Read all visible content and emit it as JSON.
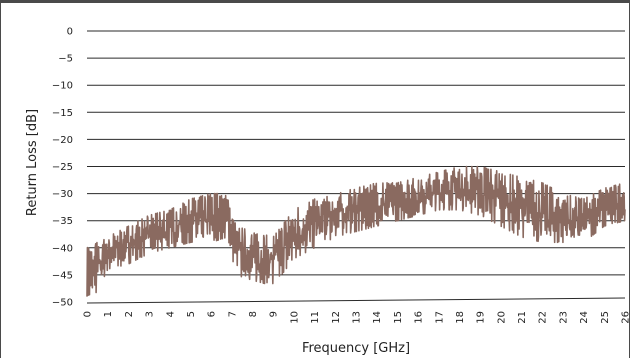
{
  "chart_data": {
    "type": "line",
    "title": "",
    "xlabel": "Frequency [GHz]",
    "ylabel": "Return Loss [dB]",
    "xlim": [
      0,
      26
    ],
    "ylim": [
      -50,
      0
    ],
    "x_ticks": [
      "0",
      "1",
      "2",
      "3",
      "4",
      "5",
      "6",
      "7",
      "8",
      "9",
      "10",
      "11",
      "12",
      "13",
      "14",
      "15",
      "16",
      "17",
      "18",
      "19",
      "20",
      "21",
      "22",
      "23",
      "24",
      "25",
      "26"
    ],
    "y_ticks": [
      "0",
      "−5",
      "−10",
      "−15",
      "−20",
      "−25",
      "−30",
      "−35",
      "−40",
      "−45",
      "−50"
    ],
    "grid": "horizontal",
    "series": [
      {
        "color": "#8a6a60",
        "envelope_x": [
          0,
          0.5,
          1,
          2,
          3,
          4,
          5,
          6,
          6.8,
          7.2,
          8,
          9,
          10,
          11,
          12,
          13,
          14,
          15,
          16,
          17,
          18,
          19,
          20,
          21,
          22,
          23,
          24,
          25,
          26
        ],
        "upper": [
          -40,
          -39,
          -38,
          -36,
          -34,
          -33,
          -31,
          -30,
          -30,
          -36,
          -37,
          -38,
          -33,
          -31,
          -30,
          -29,
          -28,
          -28,
          -27,
          -26,
          -25,
          -25,
          -26,
          -27,
          -28,
          -30,
          -31,
          -29,
          -28
        ],
        "lower": [
          -50,
          -48,
          -44,
          -43,
          -41,
          -40,
          -39,
          -39,
          -38,
          -45,
          -46,
          -47,
          -42,
          -40,
          -38,
          -37,
          -36,
          -35,
          -34,
          -33,
          -33,
          -34,
          -36,
          -38,
          -39,
          -39,
          -39,
          -36,
          -35
        ]
      }
    ]
  }
}
